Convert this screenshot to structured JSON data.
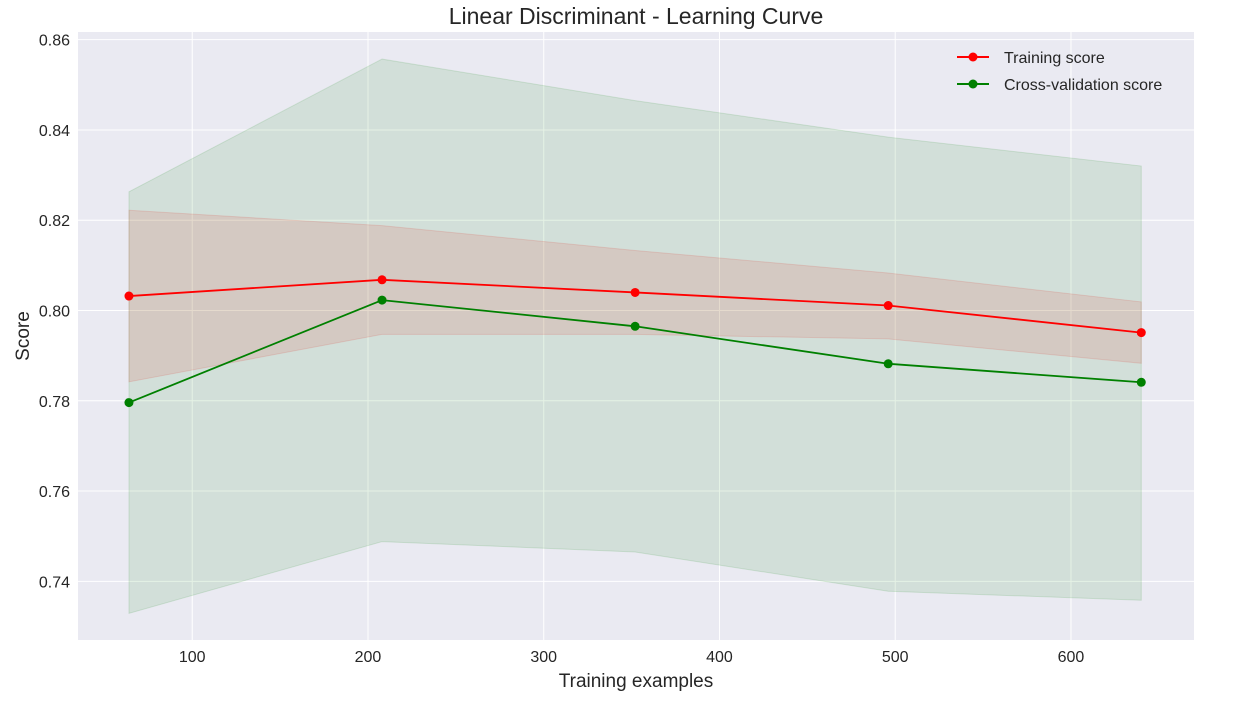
{
  "chart_data": {
    "type": "line",
    "title": "Linear Discriminant - Learning Curve",
    "xlabel": "Training examples",
    "ylabel": "Score",
    "xlim": [
      35,
      670
    ],
    "ylim": [
      0.727,
      0.8617
    ],
    "xticks": [
      100,
      200,
      300,
      400,
      500,
      600
    ],
    "xtick_labels": [
      "100",
      "200",
      "300",
      "400",
      "500",
      "600"
    ],
    "yticks": [
      0.74,
      0.76,
      0.78,
      0.8,
      0.82,
      0.84,
      0.86
    ],
    "ytick_labels": [
      "0.74",
      "0.76",
      "0.78",
      "0.80",
      "0.82",
      "0.84",
      "0.86"
    ],
    "grid": true,
    "legend_position": "top-right",
    "x": [
      64,
      208,
      352,
      496,
      640
    ],
    "series": [
      {
        "name": "Training score",
        "color": "#ff0000",
        "values": [
          0.8032,
          0.8068,
          0.804,
          0.8011,
          0.7951
        ],
        "band_lower": [
          0.7842,
          0.7947,
          0.7947,
          0.7937,
          0.7883
        ],
        "band_upper": [
          0.8222,
          0.8188,
          0.8133,
          0.8083,
          0.8019
        ],
        "band_color": "#ff0000"
      },
      {
        "name": "Cross-validation score",
        "color": "#008000",
        "values": [
          0.7796,
          0.8023,
          0.7965,
          0.7882,
          0.7841
        ],
        "band_lower": [
          0.7329,
          0.7488,
          0.7465,
          0.7378,
          0.7358
        ],
        "band_upper": [
          0.8263,
          0.8557,
          0.8465,
          0.8384,
          0.832
        ],
        "band_color": "#008000"
      }
    ]
  },
  "colors": {
    "plot_background": "#eaeaf2",
    "grid": "#ffffff",
    "text": "#262626"
  }
}
